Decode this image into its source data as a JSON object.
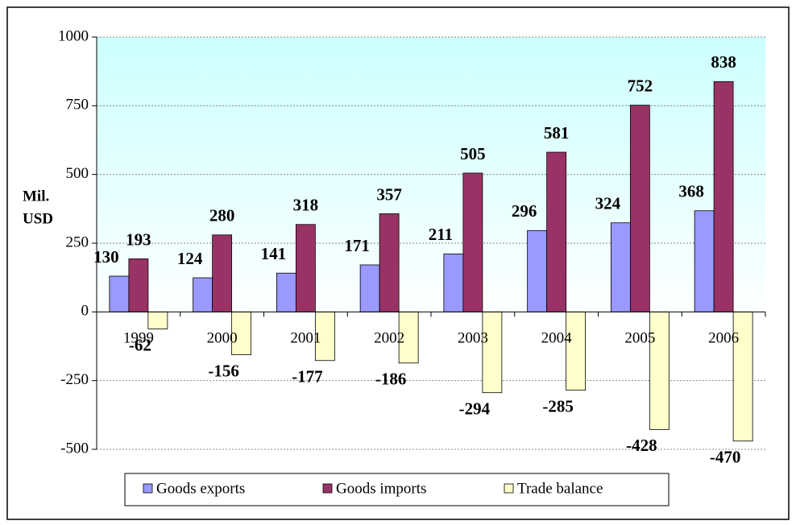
{
  "chart_data": {
    "type": "bar",
    "y_label_lines": [
      "Mil.",
      "USD"
    ],
    "categories": [
      "1999",
      "2000",
      "2001",
      "2002",
      "2003",
      "2004",
      "2005",
      "2006"
    ],
    "series": [
      {
        "name": "Goods exports",
        "color": "#9999ff",
        "values": [
          130,
          124,
          141,
          171,
          211,
          296,
          324,
          368
        ]
      },
      {
        "name": "Goods imports",
        "color": "#993366",
        "values": [
          193,
          280,
          318,
          357,
          505,
          581,
          752,
          838
        ]
      },
      {
        "name": "Trade balance",
        "color": "#ffffcc",
        "values": [
          -62,
          -156,
          -177,
          -186,
          -294,
          -285,
          -428,
          -470
        ]
      }
    ],
    "ylim": [
      -500,
      1000
    ],
    "yticks": [
      1000,
      750,
      500,
      250,
      0,
      -250,
      -500
    ],
    "grid": true,
    "legend": "bottom"
  }
}
